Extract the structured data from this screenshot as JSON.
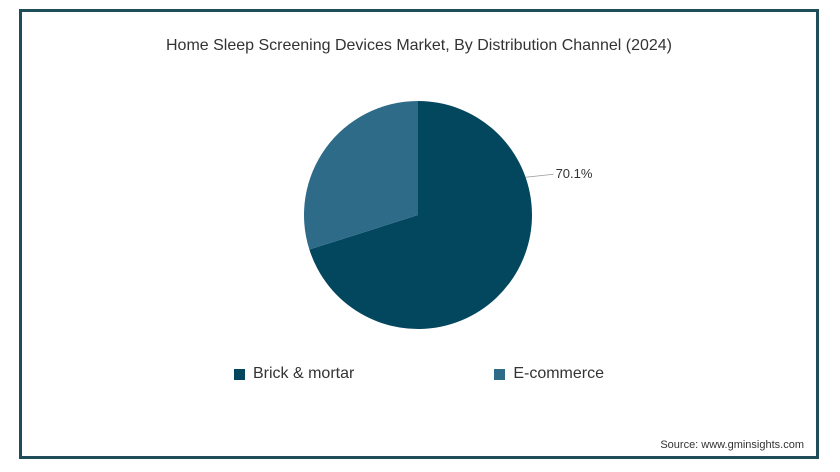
{
  "chart_data": {
    "type": "pie",
    "title": "Home Sleep Screening Devices Market, By Distribution Channel (2024)",
    "categories": [
      "Brick & mortar",
      "E-commerce"
    ],
    "values": [
      70.1,
      29.9
    ],
    "data_labels": [
      "70.1%",
      ""
    ],
    "colors": [
      "#03475f",
      "#2e6b88"
    ],
    "legend_position": "bottom"
  },
  "source": "Source: www.gminsights.com"
}
